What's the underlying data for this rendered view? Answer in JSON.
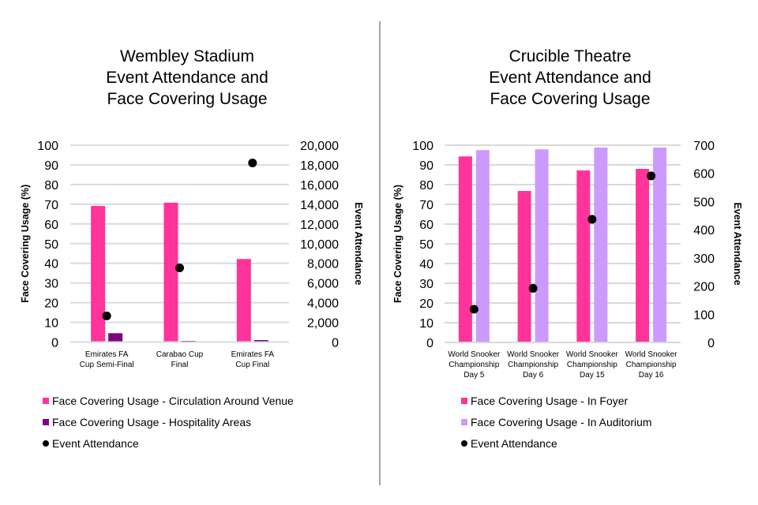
{
  "colors": {
    "pink": "#FF3399",
    "purple": "#7F007F",
    "lilac": "#CC99FF",
    "dot": "#000000",
    "grid_left": "#D6DCE4",
    "grid_right": "#D9D9D9",
    "divider": "#A6A6A6"
  },
  "chart_data": [
    {
      "type": "bar",
      "title": "Wembley Stadium Event Attendance and Face Covering Usage",
      "title_lines": [
        "Wembley Stadium",
        "Event Attendance and",
        "Face Covering Usage"
      ],
      "categories": [
        "Emirates FA Cup Semi-Final",
        "Carabao Cup Final",
        "Emirates FA Cup Final"
      ],
      "category_lines": [
        [
          "Emirates FA",
          "Cup Semi-Final"
        ],
        [
          "Carabao Cup",
          "Final"
        ],
        [
          "Emirates FA",
          "Cup Final"
        ]
      ],
      "ylabel": "Face Covering Usage (%)",
      "ylim": [
        0,
        100
      ],
      "yticks": [
        0,
        10,
        20,
        30,
        40,
        50,
        60,
        70,
        80,
        90,
        100
      ],
      "ytick_labels": [
        "0",
        "10",
        "20",
        "30",
        "40",
        "50",
        "60",
        "70",
        "80",
        "90",
        "100"
      ],
      "y2label": "Event Attendance",
      "y2lim": [
        0,
        20000
      ],
      "y2ticks": [
        0,
        2000,
        4000,
        6000,
        8000,
        10000,
        12000,
        14000,
        16000,
        18000,
        20000
      ],
      "y2tick_labels": [
        "0",
        "2,000",
        "4,000",
        "6,000",
        "8,000",
        "10,000",
        "12,000",
        "14,000",
        "16,000",
        "18,000",
        "20,000"
      ],
      "grid": true,
      "legend_position": "bottom",
      "series": [
        {
          "name": "Face Covering Usage - Circulation Around Venue",
          "kind": "bar",
          "axis": "left",
          "color_key": "pink",
          "values": [
            69.1,
            70.8,
            42.2
          ]
        },
        {
          "name": "Face Covering Usage - Hospitality Areas",
          "kind": "bar",
          "axis": "left",
          "color_key": "purple",
          "values": [
            4.5,
            0.6,
            1.0
          ]
        },
        {
          "name": "Event Attendance",
          "kind": "scatter",
          "axis": "right",
          "color_key": "dot",
          "values": [
            2660,
            7540,
            18200
          ]
        }
      ]
    },
    {
      "type": "bar",
      "title": "Crucible Theatre Event Attendance and Face Covering Usage",
      "title_lines": [
        "Crucible Theatre",
        "Event Attendance and",
        "Face Covering Usage"
      ],
      "categories": [
        "World Snooker Championship Day 5",
        "World Snooker Championship Day 6",
        "World Snooker Championship Day 15",
        "World Snooker Championship Day 16"
      ],
      "category_lines": [
        [
          "World Snooker",
          "Championship",
          "Day 5"
        ],
        [
          "World Snooker",
          "Championship",
          "Day 6"
        ],
        [
          "World Snooker",
          "Championship",
          "Day 15"
        ],
        [
          "World Snooker",
          "Championship",
          "Day 16"
        ]
      ],
      "ylabel": "Face Covering Usage (%)",
      "ylim": [
        0,
        100
      ],
      "yticks": [
        0,
        10,
        20,
        30,
        40,
        50,
        60,
        70,
        80,
        90,
        100
      ],
      "ytick_labels": [
        "0",
        "10",
        "20",
        "30",
        "40",
        "50",
        "60",
        "70",
        "80",
        "90",
        "100"
      ],
      "y2label": "Event Attendance",
      "y2lim": [
        0,
        700
      ],
      "y2ticks": [
        0,
        100,
        200,
        300,
        400,
        500,
        600,
        700
      ],
      "y2tick_labels": [
        "0",
        "100",
        "200",
        "300",
        "400",
        "500",
        "600",
        "700"
      ],
      "grid": true,
      "legend_position": "bottom",
      "series": [
        {
          "name": "Face Covering Usage - In Foyer",
          "kind": "bar",
          "axis": "left",
          "color_key": "pink",
          "values": [
            94.3,
            76.8,
            87.2,
            88.0
          ]
        },
        {
          "name": "Face Covering Usage - In Auditorium",
          "kind": "bar",
          "axis": "left",
          "color_key": "lilac",
          "values": [
            97.5,
            97.9,
            98.8,
            98.8
          ]
        },
        {
          "name": "Event Attendance",
          "kind": "scatter",
          "axis": "right",
          "color_key": "dot",
          "values": [
            118,
            192,
            437,
            591
          ]
        }
      ]
    }
  ]
}
